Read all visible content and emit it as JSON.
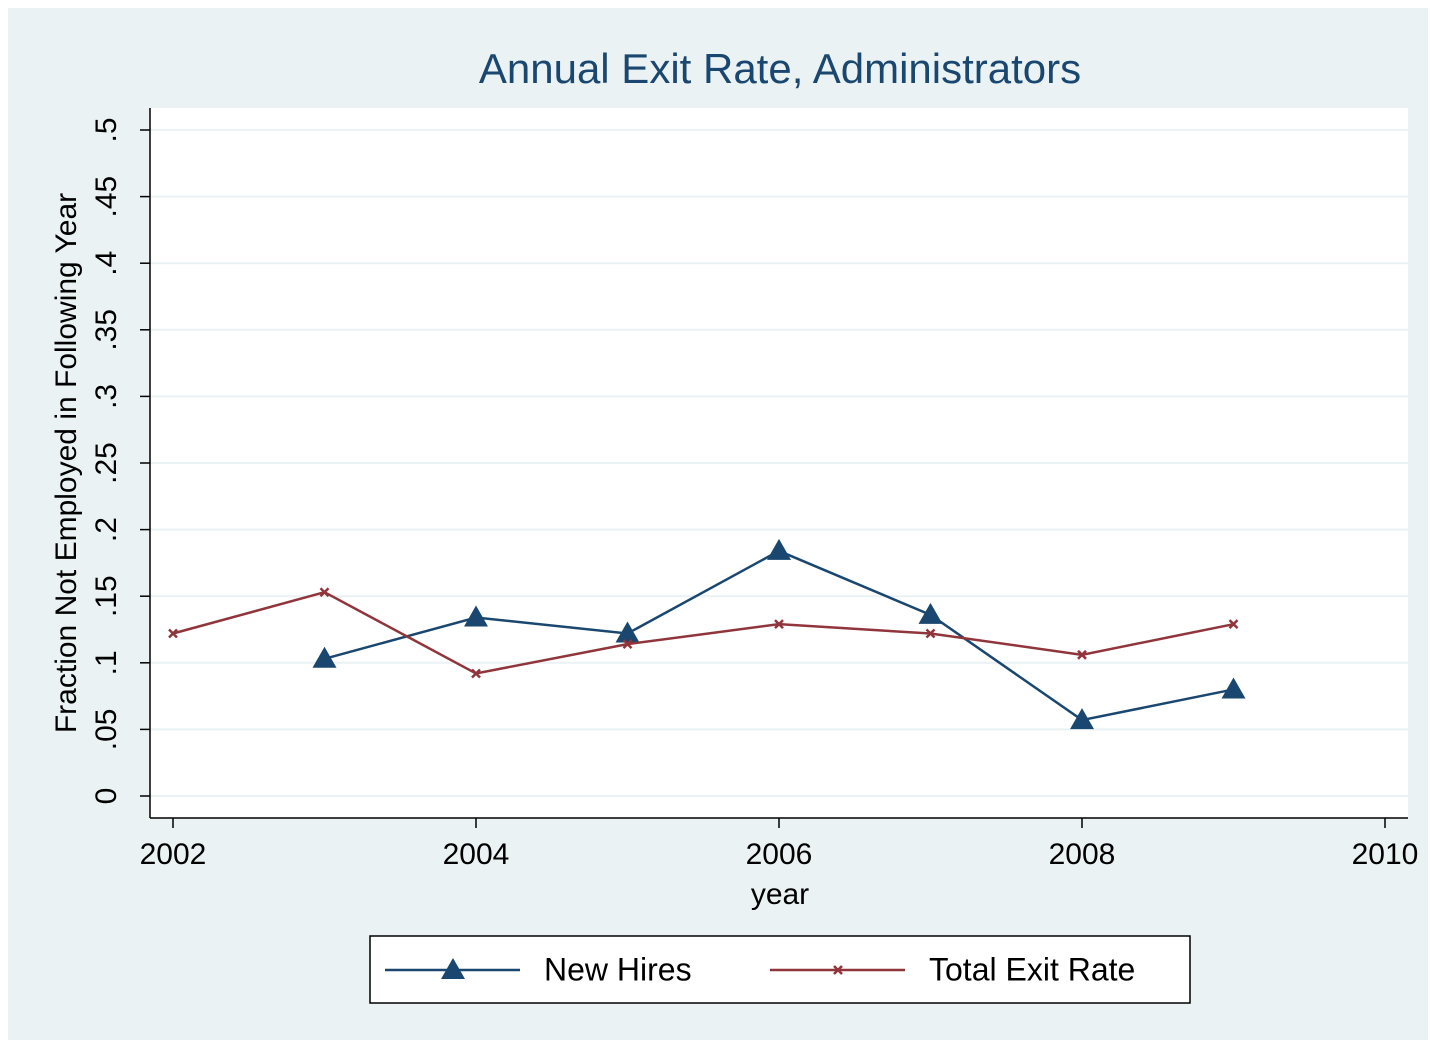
{
  "chart_data": {
    "type": "line",
    "title": "Annual Exit Rate, Administrators",
    "x_label": "year",
    "y_label": "Fraction Not Employed in Following Year",
    "series": [
      {
        "name": "New Hires",
        "color": "#1a476f",
        "marker": "triangle",
        "x": [
          2003,
          2004,
          2005,
          2006,
          2007,
          2008,
          2009
        ],
        "values": [
          0.103,
          0.134,
          0.122,
          0.184,
          0.136,
          0.057,
          0.08
        ]
      },
      {
        "name": "Total Exit Rate",
        "color": "#90353b",
        "marker": "x",
        "x": [
          2002,
          2003,
          2004,
          2005,
          2006,
          2007,
          2008,
          2009
        ],
        "values": [
          0.122,
          0.153,
          0.092,
          0.114,
          0.129,
          0.122,
          0.106,
          0.129
        ]
      }
    ],
    "xlim": [
      2002,
      2010
    ],
    "xticks": [
      2002,
      2004,
      2006,
      2008,
      2010
    ],
    "ylim": [
      0,
      0.5
    ],
    "yticks": [
      {
        "value": 0,
        "label": "0"
      },
      {
        "value": 0.05,
        "label": ".05"
      },
      {
        "value": 0.1,
        "label": ".1"
      },
      {
        "value": 0.15,
        "label": ".15"
      },
      {
        "value": 0.2,
        "label": ".2"
      },
      {
        "value": 0.25,
        "label": ".25"
      },
      {
        "value": 0.3,
        "label": ".3"
      },
      {
        "value": 0.35,
        "label": ".35"
      },
      {
        "value": 0.4,
        "label": ".4"
      },
      {
        "value": 0.45,
        "label": ".45"
      },
      {
        "value": 0.5,
        "label": ".5"
      }
    ],
    "grid": true,
    "legend": "bottom"
  }
}
